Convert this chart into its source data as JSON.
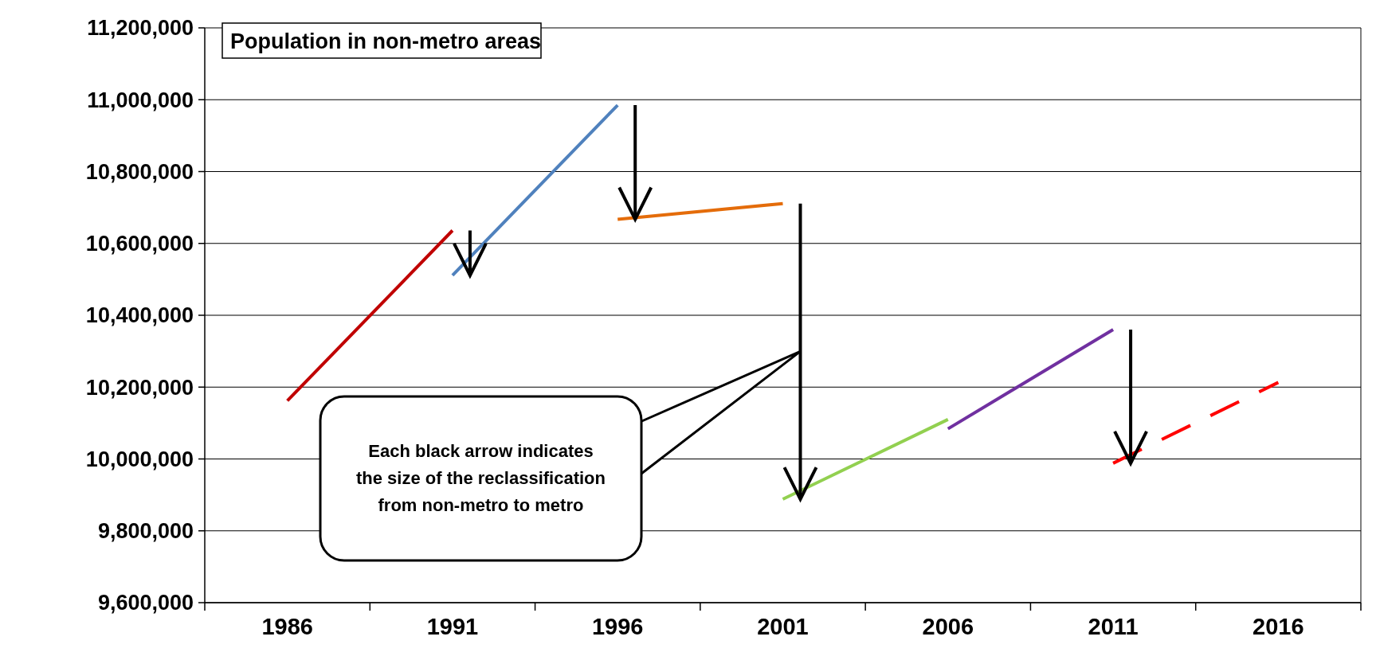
{
  "chart_data": {
    "type": "line",
    "title": "Population in non-metro areas",
    "categories": [
      "1986",
      "1991",
      "1996",
      "2001",
      "2006",
      "2011",
      "2016"
    ],
    "series": [
      {
        "color": "#c00000",
        "values": [
          10162000,
          10636000,
          null,
          null,
          null,
          null,
          null
        ]
      },
      {
        "color": "#4f81bd",
        "values": [
          null,
          10511000,
          10985000,
          null,
          null,
          null,
          null
        ]
      },
      {
        "color": "#e46c0a",
        "values": [
          null,
          null,
          10667000,
          10711000,
          null,
          null,
          null
        ]
      },
      {
        "color": "#92d050",
        "values": [
          null,
          null,
          null,
          9888000,
          10110000,
          null,
          null
        ]
      },
      {
        "color": "#7030a0",
        "values": [
          null,
          null,
          null,
          null,
          10084000,
          10360000,
          null
        ]
      },
      {
        "color": "#ff0000",
        "line_style": "dashed",
        "values": [
          null,
          null,
          null,
          null,
          null,
          9988000,
          10213000
        ]
      }
    ],
    "ylim": [
      9600000,
      11200000
    ],
    "yticks": [
      {
        "value": 9600000,
        "label": "9,600,000"
      },
      {
        "value": 9800000,
        "label": "9,800,000"
      },
      {
        "value": 10000000,
        "label": "10,000,000"
      },
      {
        "value": 10200000,
        "label": "10,200,000"
      },
      {
        "value": 10400000,
        "label": "10,400,000"
      },
      {
        "value": 10600000,
        "label": "10,600,000"
      },
      {
        "value": 10800000,
        "label": "10,800,000"
      },
      {
        "value": 11000000,
        "label": "11,000,000"
      },
      {
        "value": 11200000,
        "label": "11,200,000"
      }
    ],
    "grid": "y",
    "annotations": [
      "Each black arrow indicates the size of the reclassification from non-metro to metro"
    ]
  }
}
